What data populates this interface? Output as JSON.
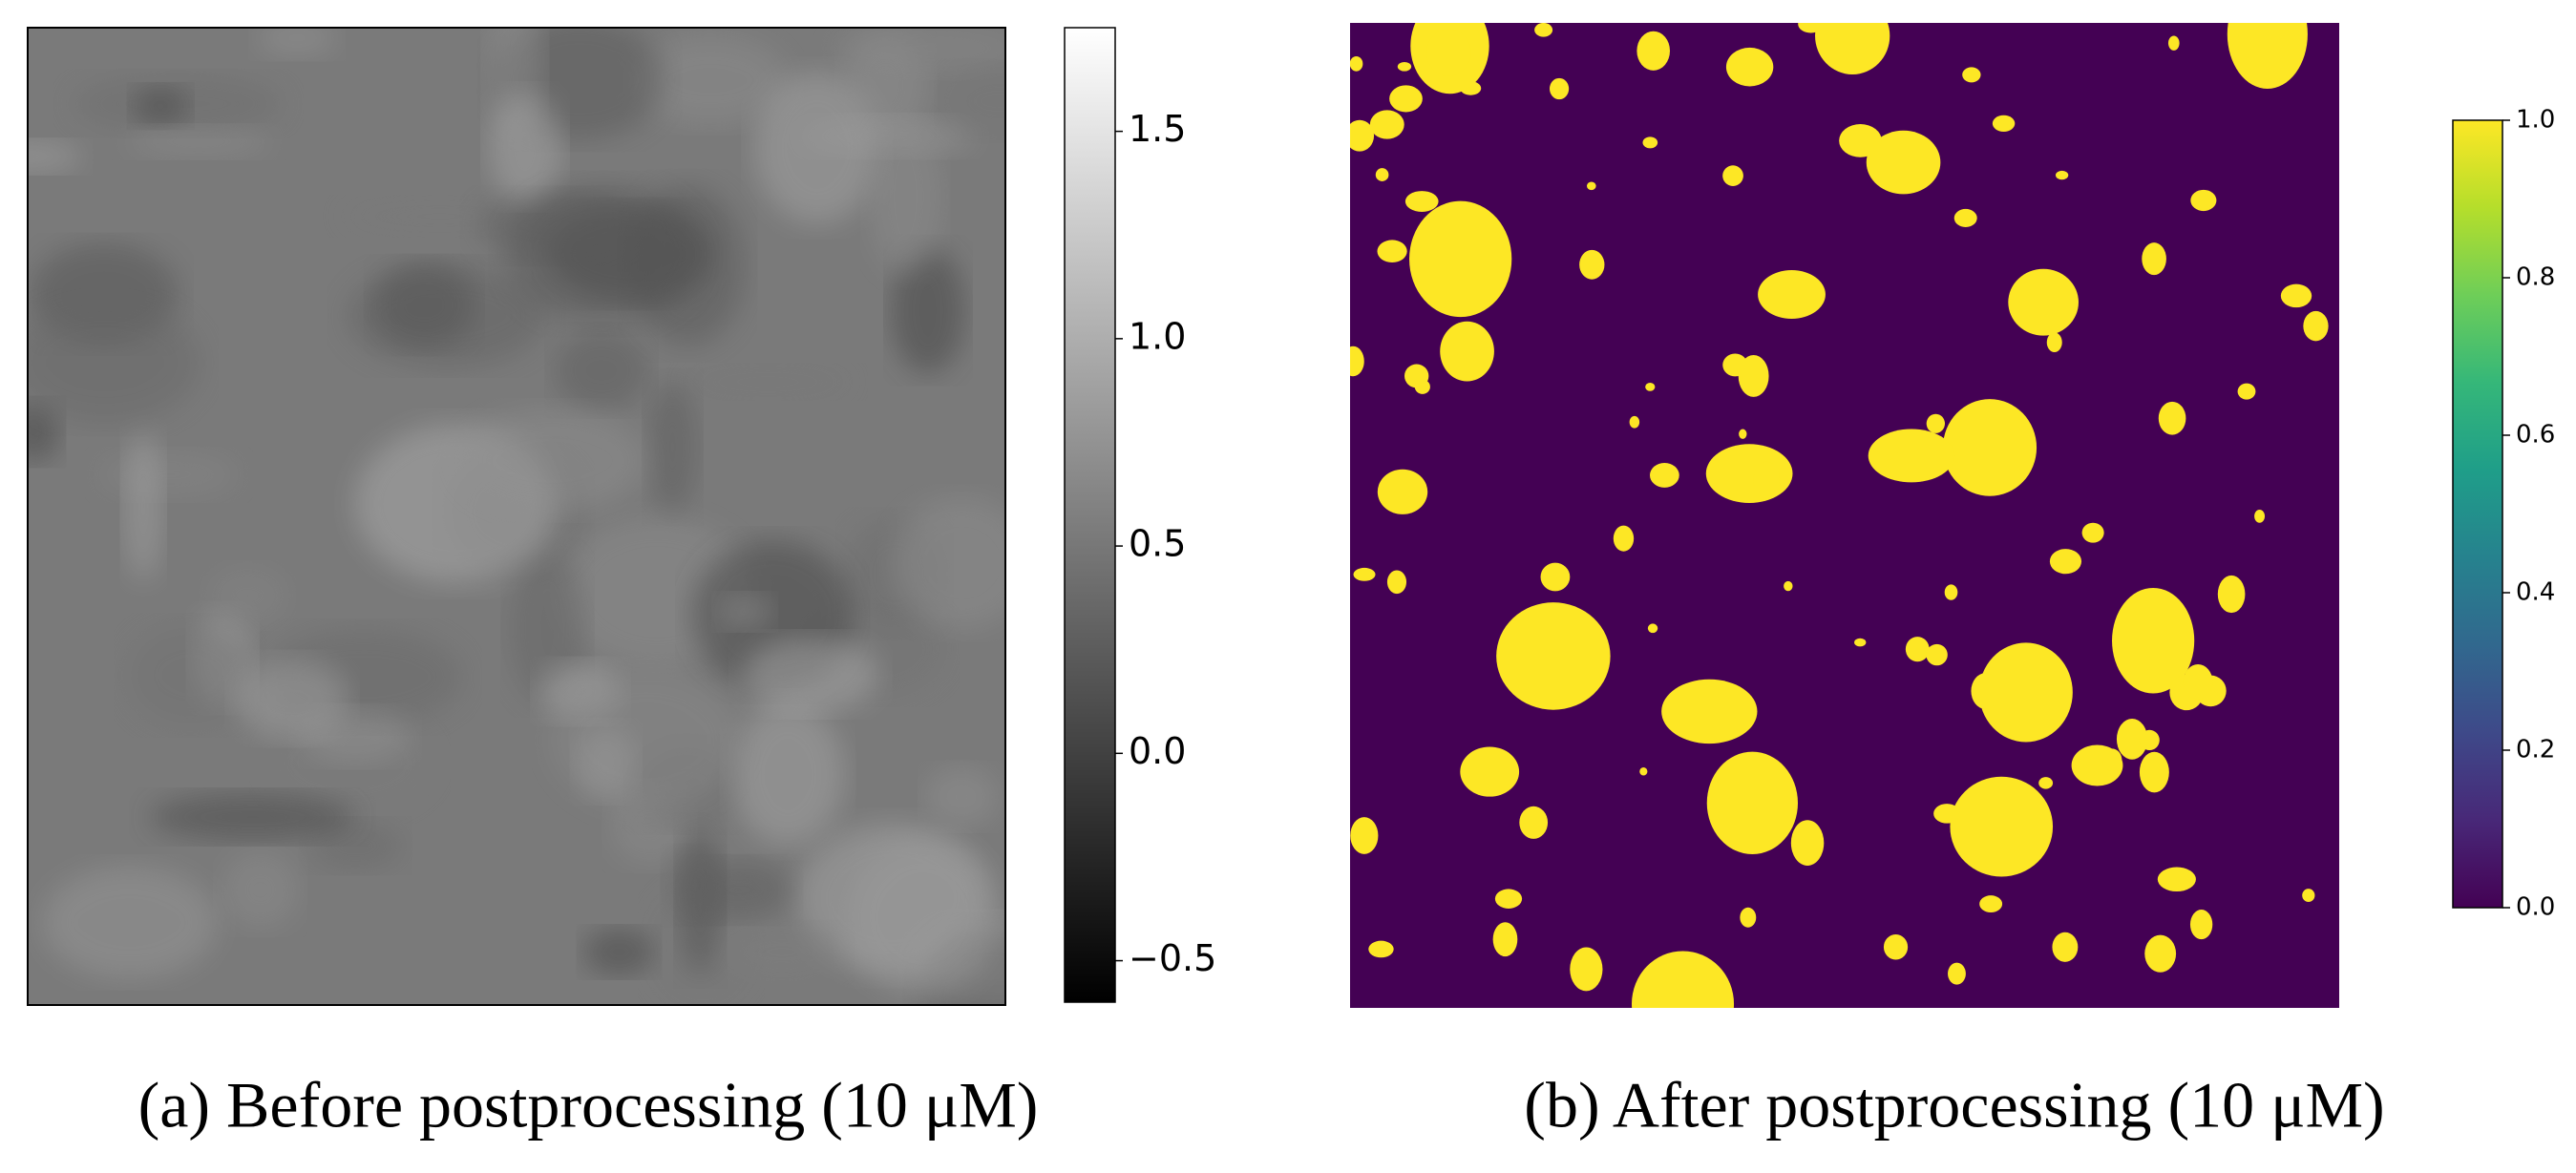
{
  "chart_data": [
    {
      "type": "image",
      "caption": "(a) Before postprocessing (10 μM)",
      "colormap": "gray",
      "clim": [
        -0.6,
        1.75
      ],
      "cticks": [
        {
          "value": -0.5,
          "label": "−0.5"
        },
        {
          "value": 0,
          "label": "0.0"
        },
        0.5,
        {
          "value": 1,
          "label": "1.0"
        },
        1.5
      ]
    },
    {
      "type": "image",
      "caption": "(b) After postprocessing (10 μM)",
      "colormap": "viridis",
      "clim": [
        0,
        1
      ],
      "cticks": [
        {
          "value": 0,
          "label": "0.0"
        },
        0.2,
        0.4,
        0.6,
        0.8,
        {
          "value": 1,
          "label": "1.0"
        }
      ]
    }
  ]
}
